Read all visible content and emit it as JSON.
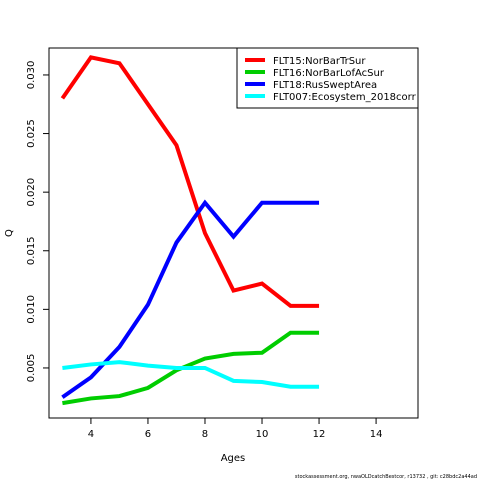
{
  "chart_data": {
    "type": "line",
    "xlabel": "Ages",
    "ylabel": "Q",
    "x": [
      3,
      4,
      5,
      6,
      7,
      8,
      9,
      10,
      11,
      12
    ],
    "series": [
      {
        "name": "FLT15:NorBarTrSur",
        "color": "#ff0000",
        "values": [
          0.028,
          0.0315,
          0.031,
          0.0275,
          0.024,
          0.0165,
          0.0116,
          0.0122,
          0.0103,
          0.0103
        ]
      },
      {
        "name": "FLT16:NorBarLofAcSur",
        "color": "#00cd00",
        "values": [
          0.002,
          0.0024,
          0.0026,
          0.0033,
          0.0048,
          0.0058,
          0.0062,
          0.0063,
          0.008,
          0.008
        ]
      },
      {
        "name": "FLT18:RusSweptArea",
        "color": "#0000ff",
        "values": [
          0.0025,
          0.0042,
          0.0068,
          0.0104,
          0.0157,
          0.0191,
          0.0162,
          0.0191,
          0.0191,
          0.0191
        ]
      },
      {
        "name": "FLT007:Ecosystem_2018corr",
        "color": "#00ffff",
        "values": [
          0.005,
          0.0053,
          0.0055,
          0.0052,
          0.005,
          0.005,
          0.0039,
          0.0038,
          0.0034,
          0.0034
        ]
      }
    ],
    "xlim": [
      2.53,
      15.47
    ],
    "xticks": [
      4,
      6,
      8,
      10,
      12,
      14
    ],
    "ylim": [
      0.00073,
      0.0323
    ],
    "yticks": [
      {
        "value": 0.005,
        "label": "0.005"
      },
      {
        "value": 0.01,
        "label": "0.010"
      },
      {
        "value": 0.015,
        "label": "0.015"
      },
      {
        "value": 0.02,
        "label": "0.020"
      },
      {
        "value": 0.025,
        "label": "0.025"
      },
      {
        "value": 0.03,
        "label": "0.030"
      }
    ],
    "legend": "top-right",
    "footnote": "stockassessment.org, nwaOLDcatchBestcor, r13732 , git: c28bdc2a44ad"
  }
}
